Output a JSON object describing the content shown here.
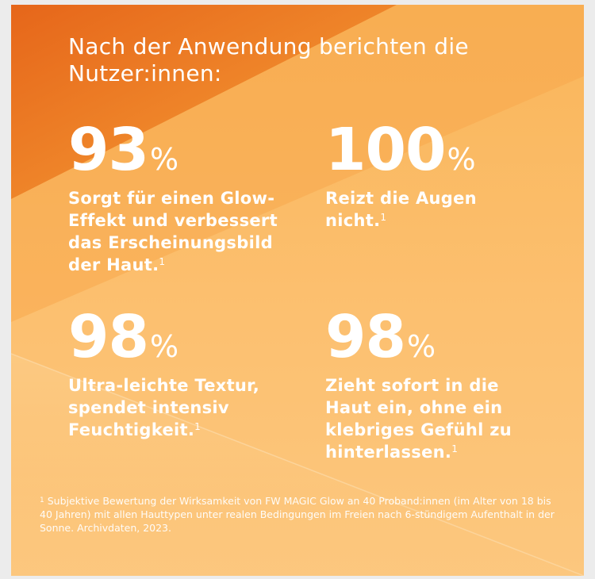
{
  "headline": "Nach der Anwendung berichten die Nutzer:innen:",
  "stats": [
    {
      "value": "93",
      "unit": "%",
      "description": "Sorgt für einen Glow-Effekt und verbessert das Erscheinungsbild der Haut.",
      "footnote_mark": "1"
    },
    {
      "value": "100",
      "unit": "%",
      "description": "Reizt die Augen nicht.",
      "footnote_mark": "1"
    },
    {
      "value": "98",
      "unit": "%",
      "description": "Ultra-leichte Textur, spendet intensiv Feuchtigkeit.",
      "footnote_mark": "1"
    },
    {
      "value": "98",
      "unit": "%",
      "description": "Zieht sofort in die Haut ein, ohne ein klebriges Gefühl zu hinterlassen.",
      "footnote_mark": "1"
    }
  ],
  "footnote": {
    "mark": "1",
    "text": "Subjektive Bewertung der Wirksamkeit von FW MAGIC Glow an 40 Proband:innen (im Alter von 18 bis 40 Jahren) mit allen Hauttypen unter realen Bedingungen im Freien nach 6-stündigem Aufenthalt in der Sonne. Archivdaten, 2023."
  },
  "colors": {
    "background": "#fcc070",
    "accent_dark": "#e8731a",
    "text": "#ffffff"
  }
}
